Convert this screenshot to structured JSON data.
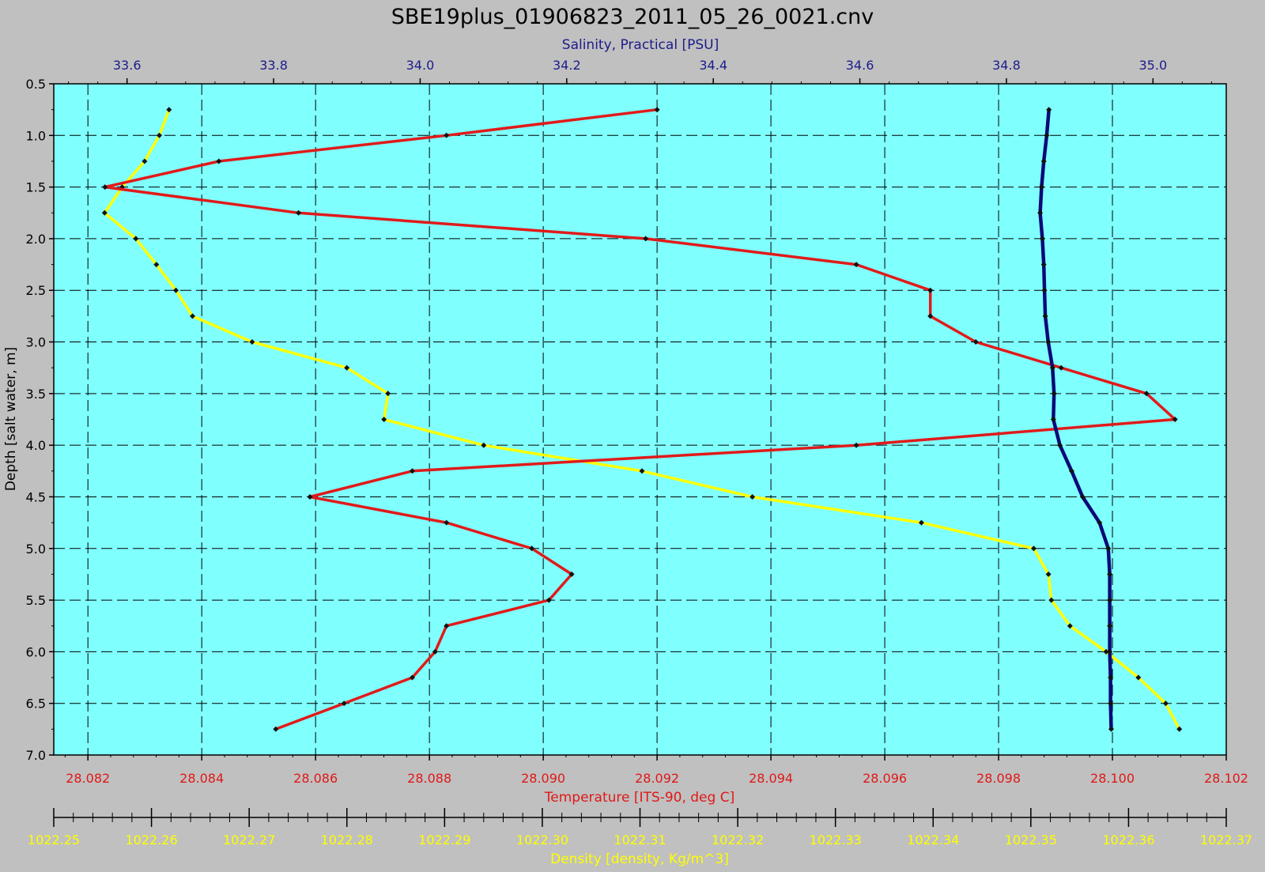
{
  "chart_data": {
    "type": "line",
    "title": "SBE19plus_01906823_2011_05_26_0021.cnv",
    "colors": {
      "background": "#c0c0c0",
      "plot_area": "#80ffff",
      "temperature": "#e11a1a",
      "salinity": "#0a0a78",
      "density": "#ffff00",
      "marker": "#111111"
    },
    "y_axis": {
      "label": "Depth [salt water, m]",
      "range": [
        0.5,
        7.0
      ],
      "inverted": true,
      "ticks": [
        "0.5",
        "1.0",
        "1.5",
        "2.0",
        "2.5",
        "3.0",
        "3.5",
        "4.0",
        "4.5",
        "5.0",
        "5.5",
        "6.0",
        "6.5",
        "7.0"
      ]
    },
    "x_axes": [
      {
        "id": "salinity",
        "label": "Salinity, Practical [PSU]",
        "position": "top",
        "range": [
          33.5,
          35.1
        ],
        "ticks": [
          "33.6",
          "33.8",
          "34.0",
          "34.2",
          "34.4",
          "34.6",
          "34.8",
          "35.0"
        ]
      },
      {
        "id": "temperature",
        "label": "Temperature [ITS-90, deg C]",
        "position": "bottom",
        "range": [
          28.0814,
          28.102
        ],
        "ticks": [
          "28.082",
          "28.084",
          "28.086",
          "28.088",
          "28.090",
          "28.092",
          "28.094",
          "28.096",
          "28.098",
          "28.100",
          "28.102"
        ]
      },
      {
        "id": "density",
        "label": "Density [density, Kg/m^3]",
        "position": "bottom",
        "range": [
          1022.25,
          1022.37
        ],
        "ticks": [
          "1022.25",
          "1022.26",
          "1022.27",
          "1022.28",
          "1022.29",
          "1022.30",
          "1022.31",
          "1022.32",
          "1022.33",
          "1022.34",
          "1022.35",
          "1022.36",
          "1022.37"
        ]
      }
    ],
    "grid": true,
    "series": [
      {
        "id": "temperature",
        "axis": "temperature",
        "depth": [
          0.75,
          1.0,
          1.25,
          1.5,
          1.75,
          2.0,
          2.25,
          2.5,
          2.75,
          3.0,
          3.25,
          3.5,
          3.75,
          4.0,
          4.25,
          4.5,
          4.75,
          5.0,
          5.25,
          5.5,
          5.75,
          6.0,
          6.25,
          6.5,
          6.75
        ],
        "values": [
          28.092,
          28.0883,
          28.0843,
          28.0823,
          28.0857,
          28.0918,
          28.0955,
          28.0968,
          28.0968,
          28.0976,
          28.0991,
          28.1006,
          28.1011,
          28.0955,
          28.0877,
          28.0859,
          28.0883,
          28.0898,
          28.0905,
          28.0901,
          28.0883,
          28.0881,
          28.0877,
          28.0865,
          28.0853
        ]
      },
      {
        "id": "salinity",
        "axis": "salinity",
        "depth": [
          0.75,
          1.0,
          1.25,
          1.5,
          1.75,
          2.0,
          2.25,
          2.5,
          2.75,
          3.0,
          3.25,
          3.5,
          3.75,
          4.0,
          4.25,
          4.5,
          4.75,
          5.0,
          5.25,
          5.5,
          5.75,
          6.0,
          6.25,
          6.5,
          6.75
        ],
        "values": [
          34.858,
          34.855,
          34.851,
          34.848,
          34.846,
          34.849,
          34.851,
          34.852,
          34.853,
          34.857,
          34.863,
          34.865,
          34.864,
          34.873,
          34.889,
          34.904,
          34.927,
          34.939,
          34.941,
          34.941,
          34.941,
          34.941,
          34.942,
          34.942,
          34.943
        ]
      },
      {
        "id": "density",
        "axis": "density",
        "depth": [
          0.75,
          1.0,
          1.25,
          1.5,
          1.75,
          2.0,
          2.25,
          2.5,
          2.75,
          3.0,
          3.25,
          3.5,
          3.75,
          4.0,
          4.25,
          4.5,
          4.75,
          5.0,
          5.25,
          5.5,
          5.75,
          6.0,
          6.25,
          6.5,
          6.75
        ],
        "values": [
          1022.2618,
          1022.2608,
          1022.2593,
          1022.257,
          1022.2552,
          1022.2584,
          1022.2605,
          1022.2625,
          1022.2642,
          1022.2703,
          1022.28,
          1022.2842,
          1022.2838,
          1022.294,
          1022.3102,
          1022.3215,
          1022.3388,
          1022.3503,
          1022.3518,
          1022.3521,
          1022.354,
          1022.3577,
          1022.361,
          1022.3638,
          1022.3652
        ]
      }
    ]
  }
}
